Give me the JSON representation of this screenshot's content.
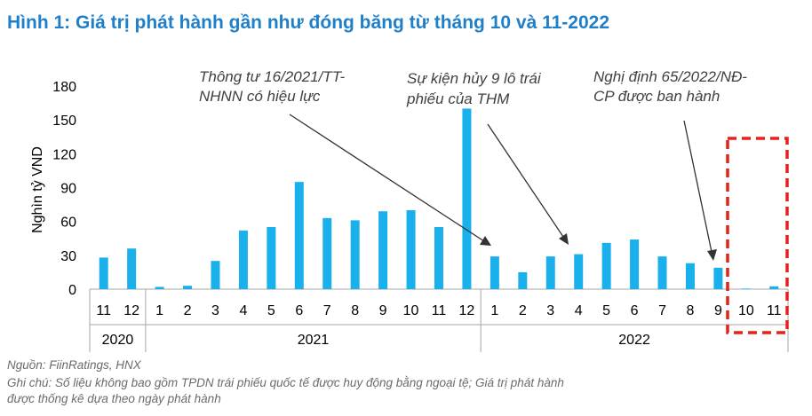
{
  "title": "Hình 1: Giá trị phát hành gần như đóng băng từ tháng 10 và 11-2022",
  "source": "Nguồn: FiinRatings, HNX",
  "note_line1": "Ghi chú: Số liệu không bao gồm TPDN trái phiếu quốc tế được huy động bằng ngoại tệ; Giá trị phát hành",
  "note_line2": "được thống kê dựa theo ngày phát hành",
  "colors": {
    "bar": "#1ab0ec",
    "title": "#1f7fc9",
    "highlight_box": "#e8201c",
    "arrow": "#333333"
  },
  "chart_data": {
    "type": "bar",
    "title": "",
    "ylabel": "Nghìn tỷ VND",
    "xlabel": "",
    "ylim": [
      0,
      180
    ],
    "yticks": [
      0,
      30,
      60,
      90,
      120,
      150,
      180
    ],
    "categories": [
      "11",
      "12",
      "1",
      "2",
      "3",
      "4",
      "5",
      "6",
      "7",
      "8",
      "9",
      "10",
      "11",
      "12",
      "1",
      "2",
      "3",
      "4",
      "5",
      "6",
      "7",
      "8",
      "9",
      "10",
      "11"
    ],
    "year_groups": [
      {
        "label": "2020",
        "count": 2
      },
      {
        "label": "2021",
        "count": 12
      },
      {
        "label": "2022",
        "count": 11
      }
    ],
    "values": [
      28,
      36,
      2,
      3,
      25,
      52,
      55,
      95,
      63,
      61,
      69,
      70,
      55,
      160,
      29,
      15,
      29,
      31,
      41,
      44,
      29,
      23,
      19,
      0.5,
      2.5
    ],
    "highlight": {
      "categories": [
        "10",
        "11"
      ],
      "year": "2022",
      "style": "dashed-box"
    },
    "annotations": [
      {
        "lines": [
          "Thông tư 16/2021/TT-",
          "NHNN có hiệu lực"
        ],
        "points_to": {
          "year": "2022",
          "month": "1"
        }
      },
      {
        "lines": [
          "Sự kiện hủy 9 lô trái",
          "phiếu của THM"
        ],
        "points_to": {
          "year": "2022",
          "month": "4"
        }
      },
      {
        "lines": [
          "Nghị định 65/2022/NĐ-",
          "CP được ban hành"
        ],
        "points_to": {
          "year": "2022",
          "month": "9"
        }
      }
    ]
  }
}
